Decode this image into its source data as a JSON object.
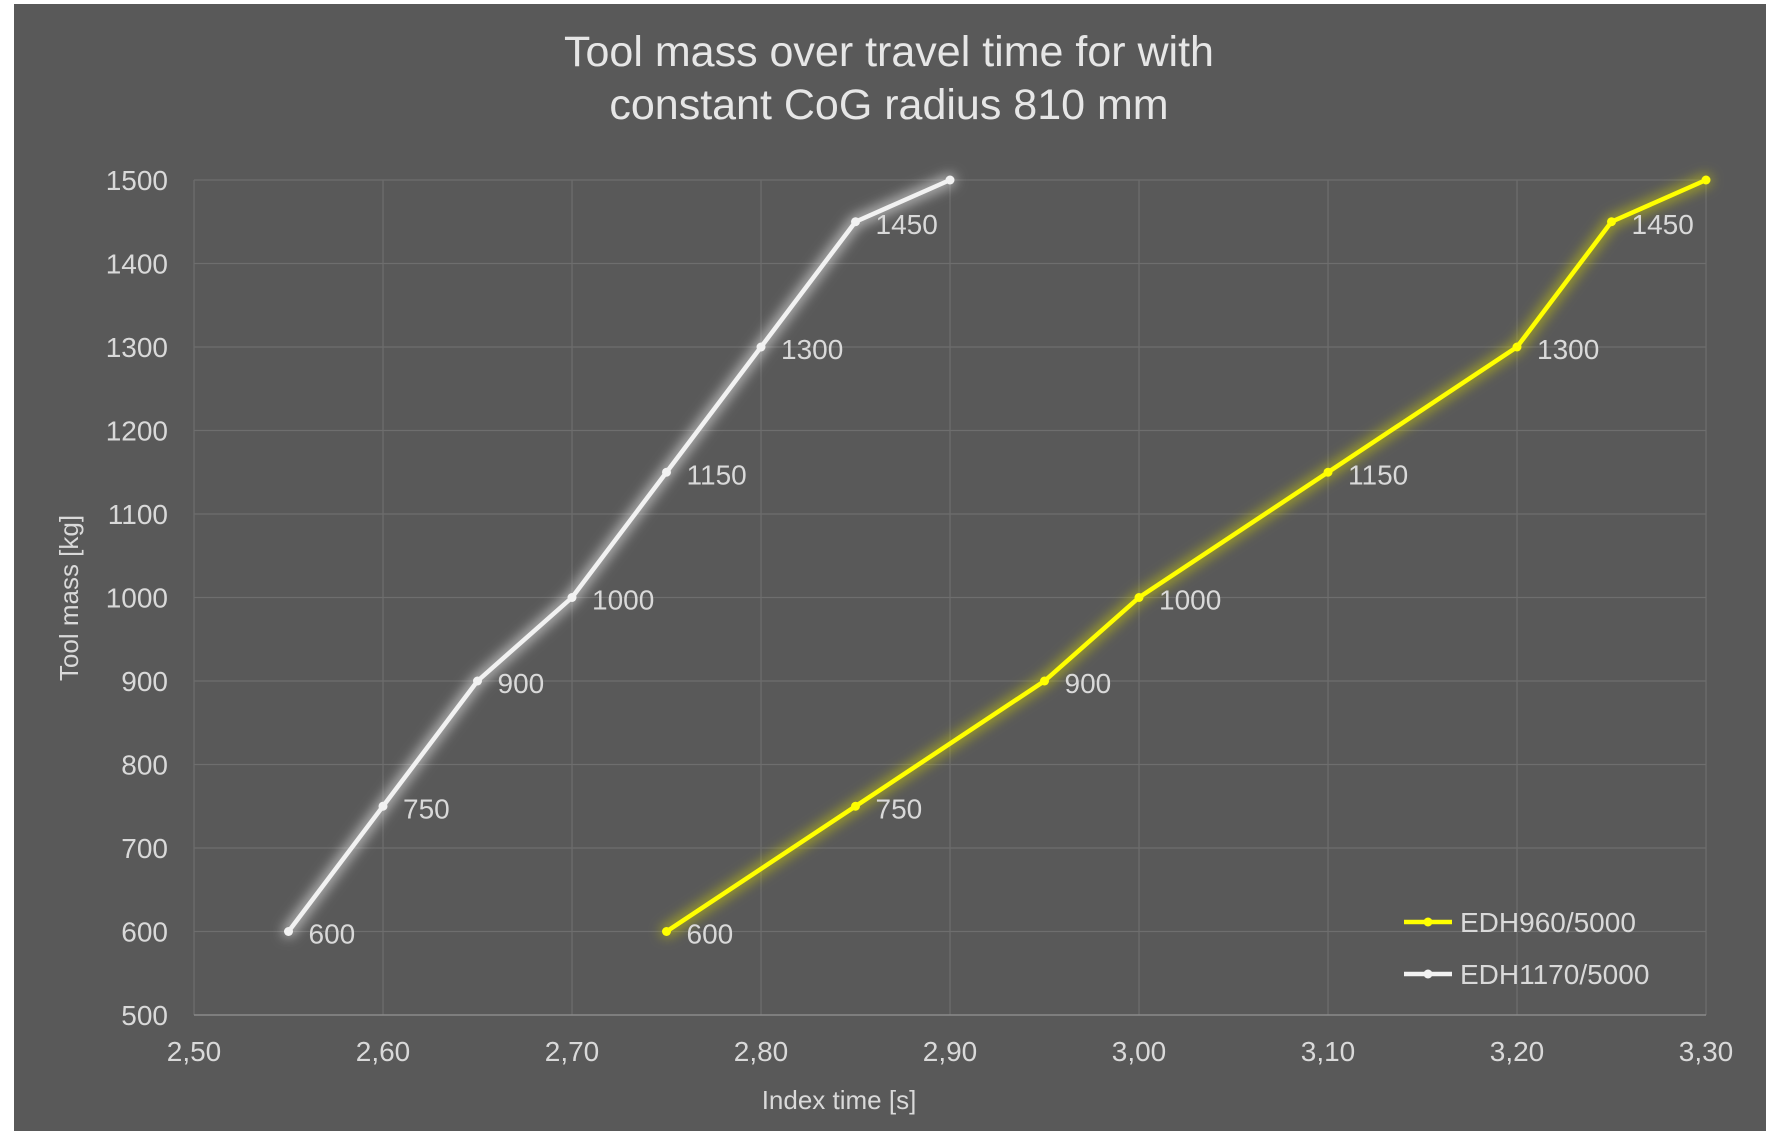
{
  "chart_data": {
    "type": "line",
    "title_lines": [
      "Tool mass over travel time for with",
      "constant CoG radius 810 mm"
    ],
    "xlabel": "Index time [s]",
    "ylabel": "Tool mass [kg]",
    "xlim": [
      2.5,
      3.3
    ],
    "ylim": [
      500,
      1500
    ],
    "x_ticks": [
      "2,50",
      "2,60",
      "2,70",
      "2,80",
      "2,90",
      "3,00",
      "3,10",
      "3,20",
      "3,30"
    ],
    "y_ticks": [
      "500",
      "600",
      "700",
      "800",
      "900",
      "1000",
      "1100",
      "1200",
      "1300",
      "1400",
      "1500"
    ],
    "grid": true,
    "legend_position": "bottom-right",
    "series": [
      {
        "name": "EDH960/5000",
        "color": "#ffff00",
        "glow": "#d6d600",
        "x": [
          2.75,
          2.85,
          2.95,
          3.0,
          3.1,
          3.2,
          3.25,
          3.3
        ],
        "y": [
          600,
          750,
          900,
          1000,
          1150,
          1300,
          1450,
          1500
        ],
        "labels": [
          "600",
          "750",
          "900",
          "1000",
          "1150",
          "1300",
          "1450",
          ""
        ]
      },
      {
        "name": "EDH1170/5000",
        "color": "#f2f2f2",
        "glow": "#ffffff",
        "x": [
          2.55,
          2.6,
          2.65,
          2.7,
          2.75,
          2.8,
          2.85,
          2.9
        ],
        "y": [
          600,
          750,
          900,
          1000,
          1150,
          1300,
          1450,
          1500
        ],
        "labels": [
          "600",
          "750",
          "900",
          "1000",
          "1150",
          "1300",
          "1450",
          ""
        ]
      }
    ]
  }
}
